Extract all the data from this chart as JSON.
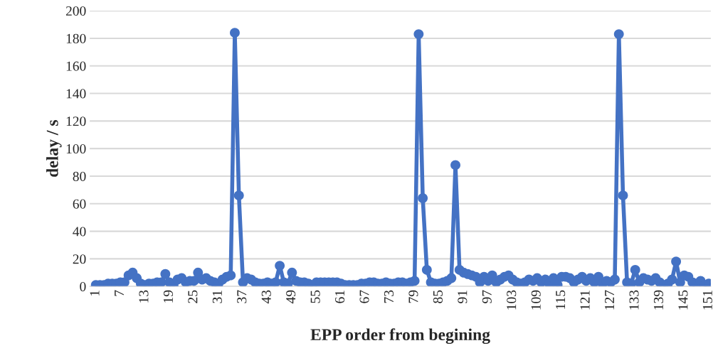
{
  "chart_data": {
    "type": "line",
    "xlabel": "EPP order from begining",
    "ylabel": "delay / s",
    "categories": [
      "1",
      null,
      null,
      null,
      null,
      null,
      "7",
      null,
      null,
      null,
      null,
      null,
      "13",
      null,
      null,
      null,
      null,
      null,
      "19",
      null,
      null,
      null,
      null,
      null,
      "25",
      null,
      null,
      null,
      null,
      null,
      "31",
      null,
      null,
      null,
      null,
      null,
      "37",
      null,
      null,
      null,
      null,
      null,
      "43",
      null,
      null,
      null,
      null,
      null,
      "49",
      null,
      null,
      null,
      null,
      null,
      "55",
      null,
      null,
      null,
      null,
      null,
      "61",
      null,
      null,
      null,
      null,
      null,
      "67",
      null,
      null,
      null,
      null,
      null,
      "73",
      null,
      null,
      null,
      null,
      null,
      "79",
      null,
      null,
      null,
      null,
      null,
      "85",
      null,
      null,
      null,
      null,
      null,
      "91",
      null,
      null,
      null,
      null,
      null,
      "97",
      null,
      null,
      null,
      null,
      null,
      "103",
      null,
      null,
      null,
      null,
      null,
      "109",
      null,
      null,
      null,
      null,
      null,
      "115",
      null,
      null,
      null,
      null,
      null,
      "121",
      null,
      null,
      null,
      null,
      null,
      "127",
      null,
      null,
      null,
      null,
      null,
      "133",
      null,
      null,
      null,
      null,
      null,
      "139",
      null,
      null,
      null,
      null,
      null,
      "145",
      null,
      null,
      null,
      null,
      null,
      "151"
    ],
    "series": [
      {
        "color": "#4472c4",
        "values": [
          1,
          1,
          1,
          2,
          2,
          2,
          3,
          3,
          8,
          10,
          6,
          2,
          1,
          2,
          2,
          3,
          3,
          9,
          3,
          1,
          5,
          6,
          3,
          4,
          4,
          10,
          5,
          6,
          4,
          3,
          2,
          5,
          7,
          8,
          184,
          66,
          3,
          6,
          5,
          3,
          2,
          2,
          3,
          2,
          3,
          15,
          3,
          2,
          10,
          4,
          3,
          3,
          2,
          1,
          3,
          3,
          3,
          3,
          3,
          3,
          2,
          1,
          1,
          1,
          1,
          2,
          2,
          3,
          3,
          2,
          2,
          3,
          2,
          2,
          3,
          3,
          2,
          3,
          4,
          183,
          64,
          12,
          3,
          2,
          2,
          3,
          4,
          6,
          88,
          12,
          10,
          9,
          8,
          7,
          3,
          7,
          4,
          8,
          3,
          5,
          7,
          8,
          5,
          3,
          2,
          3,
          5,
          4,
          6,
          3,
          5,
          2,
          6,
          1,
          7,
          7,
          6,
          3,
          5,
          7,
          4,
          6,
          3,
          7,
          2,
          4,
          3,
          5,
          183,
          66,
          3,
          2,
          12,
          3,
          6,
          5,
          4,
          6,
          3,
          1,
          2,
          5,
          18,
          3,
          8,
          7,
          3,
          2,
          4,
          1,
          2
        ]
      }
    ],
    "ylim": [
      0,
      200
    ],
    "yticks": [
      0,
      20,
      40,
      60,
      80,
      100,
      120,
      140,
      160,
      180,
      200
    ],
    "grid": "y",
    "marker": "circle",
    "line_style": "solid"
  }
}
